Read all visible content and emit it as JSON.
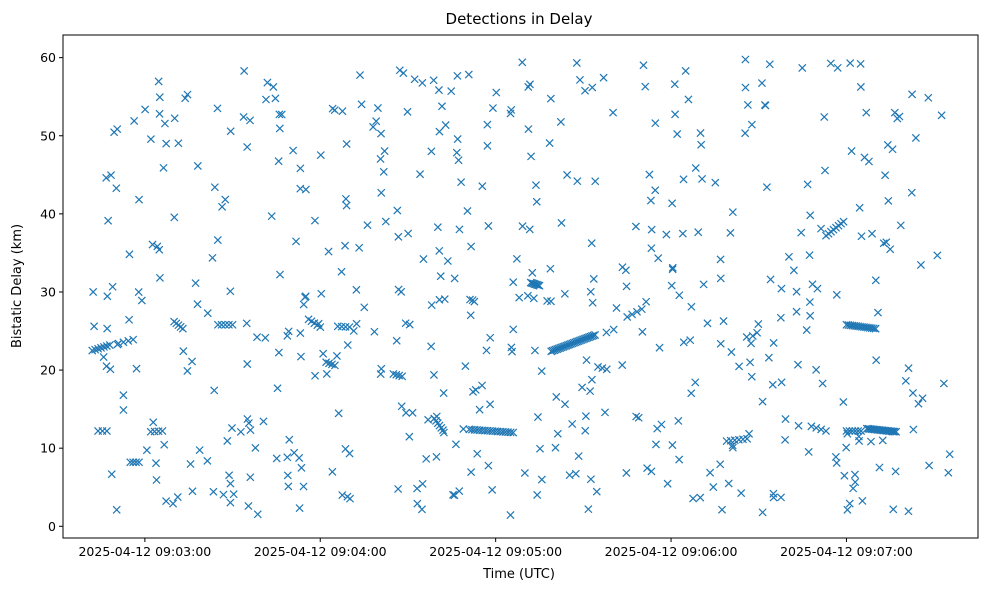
{
  "chart_data": {
    "type": "scatter",
    "title": "Detections in Delay",
    "xlabel": "Time (UTC)",
    "ylabel": "Bistatic Delay (km)",
    "marker": "x",
    "color": "#1f77b4",
    "grid": false,
    "legend": "none",
    "xlim": [
      "2025-04-12 09:02:32",
      "2025-04-12 09:07:45"
    ],
    "ylim": [
      -1.5,
      62.9
    ],
    "x_ticks": [
      "2025-04-12 09:03:00",
      "2025-04-12 09:04:00",
      "2025-04-12 09:05:00",
      "2025-04-12 09:06:00",
      "2025-04-12 09:07:00"
    ],
    "y_ticks": [
      0,
      10,
      20,
      30,
      40,
      50,
      60
    ],
    "track_points": [
      {
        "start": "2025-04-12 09:02:42",
        "end": "2025-04-12 09:02:48",
        "y_start": 22.5,
        "y_end": 23.2,
        "count": 7
      },
      {
        "start": "2025-04-12 09:02:44",
        "end": "2025-04-12 09:02:47",
        "y_start": 12.2,
        "y_end": 12.2,
        "count": 3
      },
      {
        "start": "2025-04-12 09:02:51",
        "end": "2025-04-12 09:02:56",
        "y_start": 23.4,
        "y_end": 23.9,
        "count": 4
      },
      {
        "start": "2025-04-12 09:02:55",
        "end": "2025-04-12 09:02:58",
        "y_start": 8.2,
        "y_end": 8.2,
        "count": 4
      },
      {
        "start": "2025-04-12 09:03:02",
        "end": "2025-04-12 09:03:06",
        "y_start": 12.1,
        "y_end": 12.2,
        "count": 4
      },
      {
        "start": "2025-04-12 09:03:10",
        "end": "2025-04-12 09:03:13",
        "y_start": 26.2,
        "y_end": 25.3,
        "count": 5
      },
      {
        "start": "2025-04-12 09:03:25",
        "end": "2025-04-12 09:03:30",
        "y_start": 25.8,
        "y_end": 25.8,
        "count": 5
      },
      {
        "start": "2025-04-12 09:03:56",
        "end": "2025-04-12 09:04:00",
        "y_start": 26.5,
        "y_end": 25.5,
        "count": 5
      },
      {
        "start": "2025-04-12 09:04:02",
        "end": "2025-04-12 09:04:05",
        "y_start": 21.0,
        "y_end": 20.6,
        "count": 4
      },
      {
        "start": "2025-04-12 09:04:06",
        "end": "2025-04-12 09:04:10",
        "y_start": 25.6,
        "y_end": 25.5,
        "count": 4
      },
      {
        "start": "2025-04-12 09:04:25",
        "end": "2025-04-12 09:04:28",
        "y_start": 19.5,
        "y_end": 19.2,
        "count": 4
      },
      {
        "start": "2025-04-12 09:04:39",
        "end": "2025-04-12 09:04:42",
        "y_start": 13.8,
        "y_end": 12.3,
        "count": 6
      },
      {
        "start": "2025-04-12 09:04:51",
        "end": "2025-04-12 09:05:06",
        "y_start": 12.4,
        "y_end": 12.0,
        "count": 18
      },
      {
        "start": "2025-04-12 09:05:12",
        "end": "2025-04-12 09:05:15",
        "y_start": 31.2,
        "y_end": 30.8,
        "count": 8
      },
      {
        "start": "2025-04-12 09:05:19",
        "end": "2025-04-12 09:05:34",
        "y_start": 22.4,
        "y_end": 24.5,
        "count": 30
      },
      {
        "start": "2025-04-12 09:05:35",
        "end": "2025-04-12 09:05:38",
        "y_start": 20.4,
        "y_end": 20.1,
        "count": 3
      },
      {
        "start": "2025-04-12 09:05:45",
        "end": "2025-04-12 09:05:50",
        "y_start": 26.8,
        "y_end": 27.8,
        "count": 4
      },
      {
        "start": "2025-04-12 09:06:19",
        "end": "2025-04-12 09:06:26",
        "y_start": 10.9,
        "y_end": 11.2,
        "count": 6
      },
      {
        "start": "2025-04-12 09:06:48",
        "end": "2025-04-12 09:06:53",
        "y_start": 12.8,
        "y_end": 12.2,
        "count": 4
      },
      {
        "start": "2025-04-12 09:06:53",
        "end": "2025-04-12 09:06:59",
        "y_start": 37.2,
        "y_end": 39.0,
        "count": 8
      },
      {
        "start": "2025-04-12 09:07:00",
        "end": "2025-04-12 09:07:10",
        "y_start": 25.8,
        "y_end": 25.3,
        "count": 16
      },
      {
        "start": "2025-04-12 09:07:00",
        "end": "2025-04-12 09:07:05",
        "y_start": 12.2,
        "y_end": 12.2,
        "count": 6
      },
      {
        "start": "2025-04-12 09:07:07",
        "end": "2025-04-12 09:07:17",
        "y_start": 12.5,
        "y_end": 12.1,
        "count": 20
      }
    ],
    "scattered_points": {
      "count": 520,
      "x_range": [
        "2025-04-12 09:02:42",
        "2025-04-12 09:07:36"
      ],
      "y_range": [
        1.3,
        59.8
      ]
    }
  }
}
